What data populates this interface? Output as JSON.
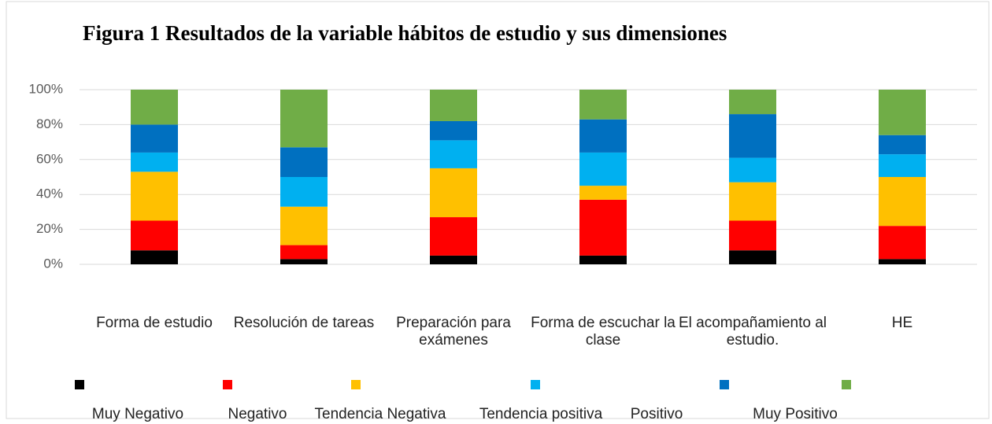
{
  "chart_data": {
    "type": "stacked_bar",
    "title": "Figura  1 Resultados de la variable hábitos de estudio y sus dimensiones",
    "categories": [
      "Forma de estudio",
      "Resolución de tareas",
      "Preparación para exámenes",
      "Forma de escuchar la clase",
      "El acompañamiento al estudio.",
      "HE"
    ],
    "series": [
      {
        "name": "Muy Negativo",
        "color": "#000000",
        "values": [
          8,
          3,
          5,
          5,
          8,
          3
        ]
      },
      {
        "name": "Negativo",
        "color": "#ff0000",
        "values": [
          17,
          8,
          22,
          32,
          17,
          19
        ]
      },
      {
        "name": "Tendencia Negativa",
        "color": "#ffc000",
        "values": [
          28,
          22,
          28,
          8,
          22,
          28
        ]
      },
      {
        "name": "Tendencia positiva",
        "color": "#00b0f0",
        "values": [
          11,
          17,
          16,
          19,
          14,
          13
        ]
      },
      {
        "name": "Positivo",
        "color": "#0070c0",
        "values": [
          16,
          17,
          11,
          19,
          25,
          11
        ]
      },
      {
        "name": "Muy Positivo",
        "color": "#70ad47",
        "values": [
          20,
          33,
          18,
          17,
          14,
          26
        ]
      }
    ],
    "ylim": [
      0,
      100
    ],
    "yticks": [
      {
        "value": 0,
        "label": "0%"
      },
      {
        "value": 20,
        "label": "20%"
      },
      {
        "value": 40,
        "label": "40%"
      },
      {
        "value": 60,
        "label": "60%"
      },
      {
        "value": 80,
        "label": "80%"
      },
      {
        "value": 100,
        "label": "100%"
      }
    ],
    "grid": true,
    "legend": "bottom"
  }
}
